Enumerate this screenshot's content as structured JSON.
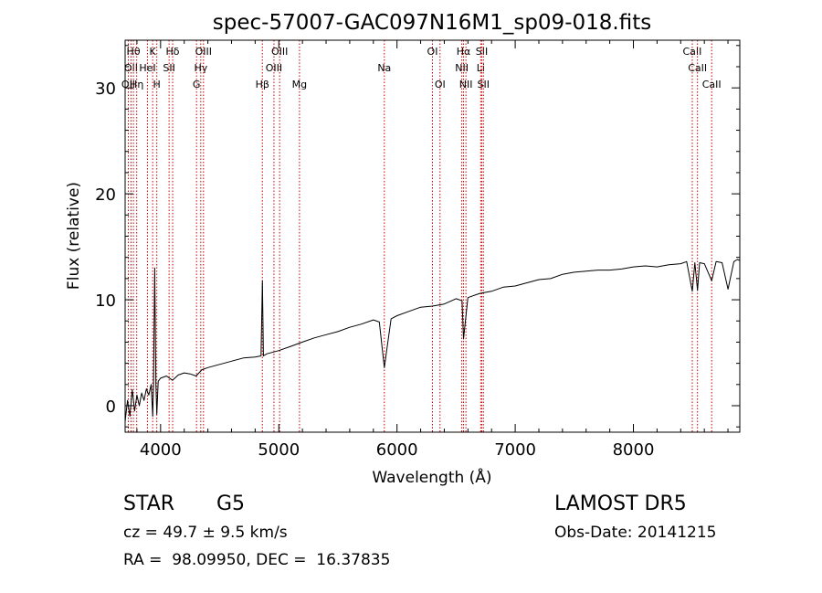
{
  "chart_data": {
    "type": "line",
    "title": "spec-57007-GAC097N16M1_sp09-018.fits",
    "xlabel": "Wavelength (Å)",
    "ylabel": "Flux (relative)",
    "xlim": [
      3700,
      8900
    ],
    "ylim": [
      -2.5,
      34.5
    ],
    "xticks": [
      4000,
      5000,
      6000,
      7000,
      8000
    ],
    "yticks": [
      0,
      10,
      20,
      30
    ],
    "grid": false,
    "legend": "none",
    "line_color": "#000000",
    "marker_color": "#cc0000",
    "series": [
      {
        "x": [
          3700,
          3720,
          3740,
          3760,
          3780,
          3800,
          3820,
          3840,
          3860,
          3880,
          3900,
          3920,
          3933,
          3940,
          3950,
          3960,
          3968,
          3980,
          4000,
          4050,
          4100,
          4150,
          4200,
          4250,
          4300,
          4350,
          4400,
          4500,
          4600,
          4700,
          4800,
          4850,
          4861,
          4870,
          4900,
          5000,
          5100,
          5200,
          5300,
          5400,
          5500,
          5600,
          5700,
          5800,
          5850,
          5893,
          5950,
          6000,
          6100,
          6200,
          6300,
          6400,
          6500,
          6550,
          6563,
          6600,
          6700,
          6800,
          6900,
          7000,
          7100,
          7200,
          7300,
          7400,
          7500,
          7600,
          7700,
          7800,
          7900,
          8000,
          8100,
          8200,
          8300,
          8400,
          8450,
          8498,
          8520,
          8542,
          8560,
          8600,
          8662,
          8700,
          8750,
          8800,
          8850,
          8880,
          8900
        ],
        "y": [
          -1.5,
          0.5,
          -1.0,
          1.5,
          -0.5,
          1.0,
          0.0,
          1.2,
          0.5,
          1.6,
          1.0,
          2.0,
          -1.0,
          2.2,
          13.0,
          2.0,
          -0.8,
          2.3,
          2.6,
          2.8,
          2.4,
          2.9,
          3.1,
          3.0,
          2.8,
          3.4,
          3.6,
          3.9,
          4.2,
          4.5,
          4.6,
          4.7,
          11.8,
          4.7,
          4.9,
          5.2,
          5.6,
          6.0,
          6.4,
          6.7,
          7.0,
          7.4,
          7.7,
          8.1,
          7.9,
          3.6,
          8.2,
          8.5,
          8.9,
          9.3,
          9.4,
          9.6,
          10.1,
          9.9,
          6.3,
          10.2,
          10.6,
          10.8,
          11.2,
          11.3,
          11.6,
          11.9,
          12.0,
          12.4,
          12.6,
          12.7,
          12.8,
          12.8,
          12.9,
          13.1,
          13.2,
          13.1,
          13.3,
          13.4,
          13.6,
          10.8,
          13.5,
          10.9,
          13.5,
          13.4,
          11.8,
          13.6,
          13.5,
          11.0,
          13.6,
          13.8,
          13.7
        ]
      }
    ],
    "line_markers": [
      {
        "wave": 3727,
        "row": 3,
        "label": "OII"
      },
      {
        "wave": 3750,
        "row": 2,
        "label": "OII"
      },
      {
        "wave": 3770,
        "row": 1,
        "label": "Hθ"
      },
      {
        "wave": 3798,
        "row": 3,
        "label": "Hη"
      },
      {
        "wave": 3889,
        "row": 2,
        "label": "HeI"
      },
      {
        "wave": 3933,
        "row": 1,
        "label": "K"
      },
      {
        "wave": 3968,
        "row": 3,
        "label": "H"
      },
      {
        "wave": 4072,
        "row": 2,
        "label": "SII"
      },
      {
        "wave": 4102,
        "row": 1,
        "label": "Hδ"
      },
      {
        "wave": 4304,
        "row": 3,
        "label": "G"
      },
      {
        "wave": 4340,
        "row": 2,
        "label": "Hγ"
      },
      {
        "wave": 4363,
        "row": 1,
        "label": "OIII"
      },
      {
        "wave": 4861,
        "row": 3,
        "label": "Hβ"
      },
      {
        "wave": 4959,
        "row": 2,
        "label": "OIII"
      },
      {
        "wave": 5007,
        "row": 1,
        "label": "OIII"
      },
      {
        "wave": 5175,
        "row": 3,
        "label": "Mg"
      },
      {
        "wave": 5893,
        "row": 2,
        "label": "Na"
      },
      {
        "wave": 6300,
        "row": 1,
        "label": "OI"
      },
      {
        "wave": 6364,
        "row": 3,
        "label": "OI"
      },
      {
        "wave": 6548,
        "row": 2,
        "label": "NII"
      },
      {
        "wave": 6563,
        "row": 1,
        "label": "Hα"
      },
      {
        "wave": 6583,
        "row": 3,
        "label": "NII"
      },
      {
        "wave": 6708,
        "row": 2,
        "label": "Li"
      },
      {
        "wave": 6717,
        "row": 1,
        "label": "SII"
      },
      {
        "wave": 6731,
        "row": 3,
        "label": "SII"
      },
      {
        "wave": 8498,
        "row": 1,
        "label": "CaII"
      },
      {
        "wave": 8542,
        "row": 2,
        "label": "CaII"
      },
      {
        "wave": 8662,
        "row": 3,
        "label": "CaII"
      }
    ]
  },
  "info": {
    "class": "STAR",
    "subclass": "G5",
    "survey": "LAMOST DR5",
    "cz": "cz = 49.7 ± 9.5 km/s",
    "obs_date": "Obs-Date: 20141215",
    "coords": "RA =  98.09950, DEC =  16.37835"
  }
}
